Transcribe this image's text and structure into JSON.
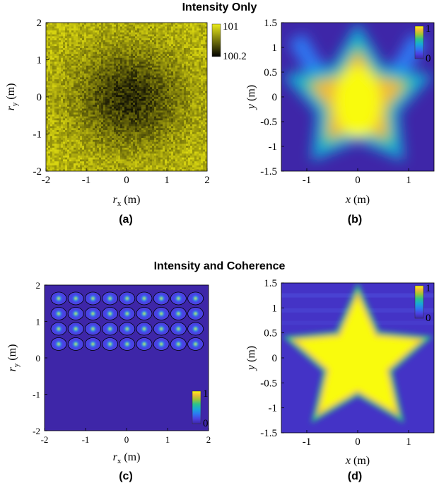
{
  "titles": {
    "top": "Intensity Only",
    "bottom": "Intensity and Coherence"
  },
  "panel_labels": [
    "(a)",
    "(b)",
    "(c)",
    "(d)"
  ],
  "chart_data": [
    {
      "id": "a",
      "type": "heatmap",
      "description_values": "noisy yellow field with a darker central region",
      "xlabel": "r",
      "xlabel_sub": "x",
      "xlabel_unit": " (m)",
      "ylabel": "r",
      "ylabel_sub": "y",
      "ylabel_unit": " (m)",
      "xlim": [
        -2,
        2
      ],
      "ylim": [
        -2,
        2
      ],
      "xticks": [
        -2,
        -1,
        0,
        1,
        2
      ],
      "yticks": [
        -2,
        -1,
        0,
        1,
        2
      ],
      "colorbar": {
        "ticks": [
          "101",
          "100.2"
        ],
        "colormap": "black-to-yellow"
      }
    },
    {
      "id": "b",
      "type": "heatmap",
      "xlabel": "x",
      "xlabel_unit": " (m)",
      "ylabel": "y",
      "ylabel_unit": " (m)",
      "xlim": [
        -1.5,
        1.5
      ],
      "ylim": [
        -1.5,
        1.5
      ],
      "xticks": [
        -1,
        0,
        1
      ],
      "yticks": [
        1.5,
        1,
        0.5,
        0,
        -0.5,
        -1,
        -1.5
      ],
      "colorbar": {
        "ticks": [
          "1",
          "0"
        ],
        "colormap": "parula"
      }
    },
    {
      "id": "c",
      "type": "heatmap",
      "xlabel": "r",
      "xlabel_sub": "x",
      "xlabel_unit": " (m)",
      "ylabel": "r",
      "ylabel_sub": "y",
      "ylabel_unit": " (m)",
      "xlim": [
        -2,
        2
      ],
      "ylim": [
        -2,
        2
      ],
      "xticks": [
        -2,
        -1,
        0,
        1,
        2
      ],
      "yticks": [
        -2,
        -1,
        0,
        1,
        2
      ],
      "grid_rows": 4,
      "grid_cols": 9,
      "colorbar": {
        "ticks": [
          "1",
          "0"
        ],
        "colormap": "parula"
      }
    },
    {
      "id": "d",
      "type": "heatmap",
      "xlabel": "x",
      "xlabel_unit": " (m)",
      "ylabel": "y",
      "ylabel_unit": " (m)",
      "xlim": [
        -1.5,
        1.5
      ],
      "ylim": [
        -1.5,
        1.5
      ],
      "xticks": [
        -1,
        0,
        1
      ],
      "yticks": [
        1.5,
        1,
        0.5,
        0,
        -0.5,
        -1,
        -1.5
      ],
      "colorbar": {
        "ticks": [
          "1",
          "0"
        ],
        "colormap": "parula"
      }
    }
  ],
  "colors": {
    "parula_low": "#3e26a8",
    "parula_mid": "#12b3b2",
    "parula_high": "#f9fb0e",
    "noise_high": "#cfcc10",
    "noise_low": "#141405"
  }
}
